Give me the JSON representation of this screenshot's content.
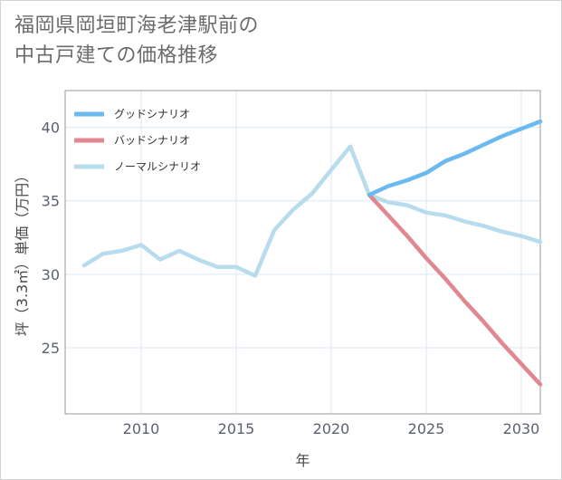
{
  "title": {
    "line1": "福岡県岡垣町海老津駅前の",
    "line2": "中古戸建ての価格推移"
  },
  "chart_data": {
    "type": "line",
    "xlabel": "年",
    "ylabel": "坪（3.3㎡）単価（万円）",
    "xlim": [
      2006,
      2031
    ],
    "ylim": [
      20.5,
      42.5
    ],
    "x_ticks": [
      2010,
      2015,
      2020,
      2025,
      2030
    ],
    "y_ticks": [
      25,
      30,
      35,
      40
    ],
    "grid": true,
    "legend_position": "top-left",
    "series": [
      {
        "name": "グッドシナリオ",
        "color": "#6bb9ee",
        "x": [
          2022,
          2023,
          2024,
          2025,
          2026,
          2027,
          2028,
          2029,
          2030,
          2031
        ],
        "values": [
          35.4,
          36.0,
          36.4,
          36.9,
          37.7,
          38.2,
          38.8,
          39.4,
          39.9,
          40.4
        ]
      },
      {
        "name": "バッドシナリオ",
        "color": "#e0878f",
        "x": [
          2022,
          2023,
          2024,
          2025,
          2026,
          2027,
          2028,
          2029,
          2030,
          2031
        ],
        "values": [
          35.4,
          34.0,
          32.6,
          31.1,
          29.7,
          28.2,
          26.8,
          25.3,
          23.9,
          22.5
        ]
      },
      {
        "name": "ノーマルシナリオ",
        "color": "#b7dcee",
        "x": [
          2007,
          2008,
          2009,
          2010,
          2011,
          2012,
          2013,
          2014,
          2015,
          2016,
          2017,
          2018,
          2019,
          2020,
          2021,
          2022,
          2023,
          2024,
          2025,
          2026,
          2027,
          2028,
          2029,
          2030,
          2031
        ],
        "values": [
          30.6,
          31.4,
          31.6,
          32.0,
          31.0,
          31.6,
          31.0,
          30.5,
          30.5,
          29.9,
          33.0,
          34.4,
          35.5,
          37.1,
          38.7,
          35.4,
          34.9,
          34.7,
          34.2,
          34.0,
          33.6,
          33.3,
          32.9,
          32.6,
          32.2
        ]
      }
    ]
  }
}
